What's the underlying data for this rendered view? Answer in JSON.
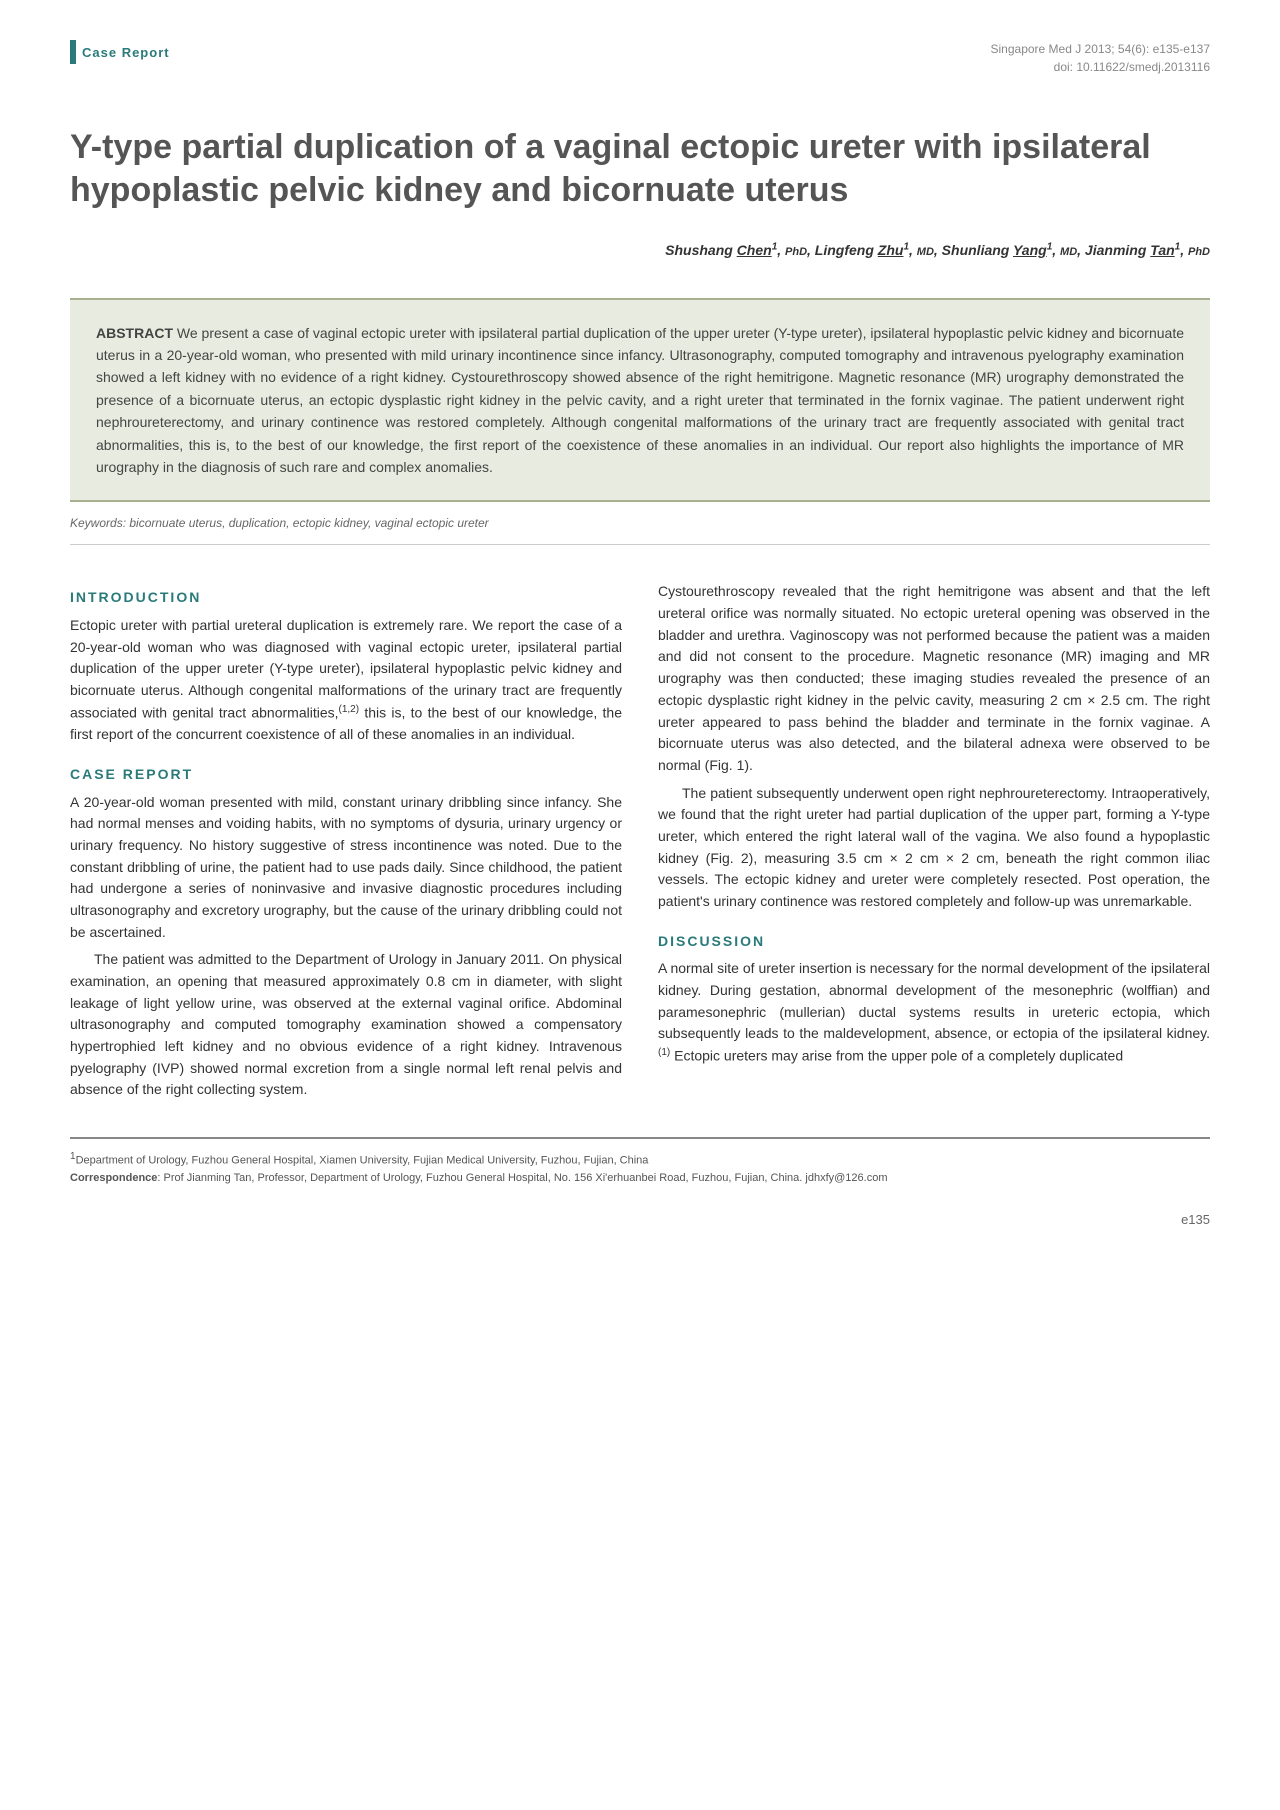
{
  "header": {
    "badge": "Case Report",
    "journal_line": "Singapore Med J 2013; 54(6): e135-e137",
    "doi_line": "doi: 10.11622/smedj.2013116"
  },
  "title": "Y-type partial duplication of a vaginal ectopic ureter with ipsilateral hypoplastic pelvic kidney and bicornuate uterus",
  "authors_html": "Shushang <span class='surname'>Chen</span><span class='sup'>1</span>, <span class='degree'>PhD</span>, Lingfeng <span class='surname'>Zhu</span><span class='sup'>1</span>, <span class='degree'>MD</span>, Shunliang <span class='surname'>Yang</span><span class='sup'>1</span>, <span class='degree'>MD</span>, Jianming <span class='surname'>Tan</span><span class='sup'>1</span>, <span class='degree'>PhD</span>",
  "abstract": {
    "label": "ABSTRACT",
    "text": "We present a case of vaginal ectopic ureter with ipsilateral partial duplication of the upper ureter (Y-type ureter), ipsilateral hypoplastic pelvic kidney and bicornuate uterus in a 20-year-old woman, who presented with mild urinary incontinence since infancy. Ultrasonography, computed tomography and intravenous pyelography examination showed a left kidney with no evidence of a right kidney. Cystourethroscopy showed absence of the right hemitrigone. Magnetic resonance (MR) urography demonstrated the presence of a bicornuate uterus, an ectopic dysplastic right kidney in the pelvic cavity, and a right ureter that terminated in the fornix vaginae. The patient underwent right nephroureterectomy, and urinary continence was restored completely. Although congenital malformations of the urinary tract are frequently associated with genital tract abnormalities, this is, to the best of our knowledge, the first report of the coexistence of these anomalies in an individual. Our report also highlights the importance of MR urography in the diagnosis of such rare and complex anomalies."
  },
  "keywords": "Keywords: bicornuate uterus, duplication, ectopic kidney, vaginal ectopic ureter",
  "sections": {
    "introduction_heading": "INTRODUCTION",
    "introduction_p1": "Ectopic ureter with partial ureteral duplication is extremely rare. We report the case of a 20-year-old woman who was diagnosed with vaginal ectopic ureter, ipsilateral partial duplication of the upper ureter (Y-type ureter), ipsilateral hypoplastic pelvic kidney and bicornuate uterus. Although congenital malformations of the urinary tract are frequently associated with genital tract abnormalities,",
    "introduction_ref1": "(1,2)",
    "introduction_p1b": " this is, to the best of our knowledge, the first report of the concurrent coexistence of all of these anomalies in an individual.",
    "case_heading": "CASE REPORT",
    "case_p1": "A 20-year-old woman presented with mild, constant urinary dribbling since infancy. She had normal menses and voiding habits, with no symptoms of dysuria, urinary urgency or urinary frequency. No history suggestive of stress incontinence was noted. Due to the constant dribbling of urine, the patient had to use pads daily. Since childhood, the patient had undergone a series of noninvasive and invasive diagnostic procedures including ultrasonography and excretory urography, but the cause of the urinary dribbling could not be ascertained.",
    "case_p2": "The patient was admitted to the Department of Urology in January 2011. On physical examination, an opening that measured approximately 0.8 cm in diameter, with slight leakage of light yellow urine, was observed at the external vaginal orifice. Abdominal ultrasonography and computed tomography examination showed a compensatory hypertrophied left kidney and no obvious evidence of a right kidney. Intravenous pyelography (IVP) showed normal excretion from a single normal left renal pelvis and absence of the right collecting system.",
    "case_p3": "Cystourethroscopy revealed that the right hemitrigone was absent and that the left ureteral orifice was normally situated. No ectopic ureteral opening was observed in the bladder and urethra. Vaginoscopy was not performed because the patient was a maiden and did not consent to the procedure. Magnetic resonance (MR) imaging and MR urography was then conducted; these imaging studies revealed the presence of an ectopic dysplastic right kidney in the pelvic cavity, measuring 2 cm × 2.5 cm. The right ureter appeared to pass behind the bladder and terminate in the fornix vaginae. A bicornuate uterus was also detected, and the bilateral adnexa were observed to be normal (Fig. 1).",
    "case_p4": "The patient subsequently underwent open right nephroureterectomy. Intraoperatively, we found that the right ureter had partial duplication of the upper part, forming a Y-type ureter, which entered the right lateral wall of the vagina. We also found a hypoplastic kidney (Fig. 2), measuring 3.5 cm × 2 cm × 2 cm, beneath the right common iliac vessels. The ectopic kidney and ureter were completely resected. Post operation, the patient's urinary continence was restored completely and follow-up was unremarkable.",
    "discussion_heading": "DISCUSSION",
    "discussion_p1a": "A normal site of ureter insertion is necessary for the normal development of the ipsilateral kidney. During gestation, abnormal development of the mesonephric (wolffian) and paramesonephric (mullerian) ductal systems results in ureteric ectopia, which subsequently leads to the maldevelopment, absence, or ectopia of the ipsilateral kidney.",
    "discussion_ref1": "(1)",
    "discussion_p1b": " Ectopic ureters may arise from the upper pole of a completely duplicated"
  },
  "footer": {
    "affiliation_sup": "1",
    "affiliation": "Department of Urology, Fuzhou General Hospital, Xiamen University, Fujian Medical University, Fuzhou, Fujian, China",
    "correspondence_label": "Correspondence",
    "correspondence": ": Prof Jianming Tan, Professor, Department of Urology, Fuzhou General Hospital, No. 156 Xi'erhuanbei Road, Fuzhou, Fujian, China. jdhxfy@126.com"
  },
  "page_number": "e135",
  "colors": {
    "accent": "#2a7a7a",
    "abstract_bg": "#e8ece0",
    "abstract_border": "#a8b090",
    "text": "#333333",
    "muted": "#888888"
  }
}
